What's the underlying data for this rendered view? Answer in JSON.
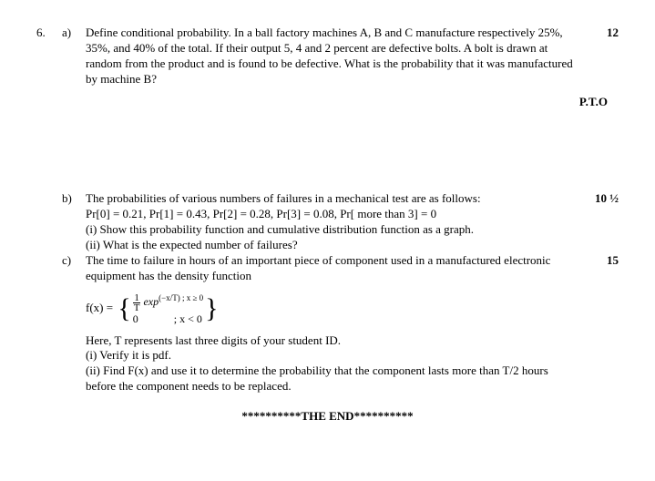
{
  "q6": {
    "num": "6.",
    "a": {
      "label": "a)",
      "text": "Define conditional probability. In a ball factory machines A, B and C manufacture respectively 25%, 35%, and 40% of the total. If their output 5, 4 and 2 percent are defective bolts. A bolt is drawn at random from the product and is found to be defective. What is the probability that it was manufactured by machine B?",
      "marks": "12"
    },
    "pto": "P.T.O",
    "b": {
      "label": "b)",
      "line1": "The probabilities of various numbers of failures in a mechanical test are as follows:",
      "line2": "Pr[0] = 0.21, Pr[1] = 0.43, Pr[2] = 0.28, Pr[3] = 0.08, Pr[ more than 3] = 0",
      "line3": "(i) Show this probability function and cumulative distribution function as a graph.",
      "line4": "(ii) What is the expected number of failures?",
      "marks": "10 ½"
    },
    "c": {
      "label": "c)",
      "line1": "The time to failure in hours of an important piece of component used in a manufactured electronic equipment has the density function",
      "fx": "f(x) =",
      "case1a": "exp",
      "case1b": "(−x/T) ; x ≥ 0",
      "case2": "; x < 0",
      "line2": "Here, T represents last three digits of your student ID.",
      "line3": "(i) Verify it is pdf.",
      "line4": "(ii) Find F(x) and use it to determine the probability that the component lasts more than T/2 hours before the component needs to be replaced.",
      "marks": "15"
    }
  },
  "end": "**********THE END**********"
}
